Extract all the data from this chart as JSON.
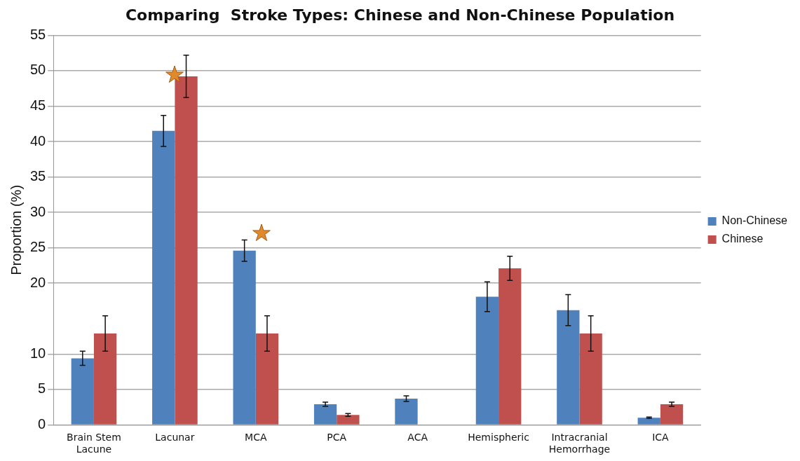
{
  "chart_data": {
    "type": "bar",
    "title": "Comparing  Stroke Types: Chinese and Non-Chinese Population",
    "ylabel": "Proportion (%)",
    "categories": [
      "Brain Stem Lacune",
      "Lacunar",
      "MCA",
      "PCA",
      "ACA",
      "Hemispheric",
      "Intracranial Hemorrhage",
      "ICA"
    ],
    "series": [
      {
        "name": "Non-Chinese",
        "color": "#4f81bd",
        "values": [
          9.4,
          41.5,
          24.6,
          2.9,
          3.7,
          18.1,
          16.2,
          1.0
        ],
        "errors": [
          1,
          2.2,
          1.5,
          0.3,
          0.4,
          2.1,
          2.2,
          0.1
        ]
      },
      {
        "name": "Chinese",
        "color": "#c0504d",
        "values": [
          12.9,
          49.2,
          12.9,
          1.4,
          null,
          22.1,
          12.9,
          2.9
        ],
        "errors": [
          2.5,
          3,
          2.5,
          0.2,
          null,
          1.7,
          2.5,
          0.3
        ]
      }
    ],
    "ylim": [
      0,
      55
    ],
    "yticks": [
      0,
      5,
      10,
      20,
      25,
      30,
      35,
      40,
      45,
      50,
      55
    ],
    "grid": "y",
    "legend": "right"
  }
}
